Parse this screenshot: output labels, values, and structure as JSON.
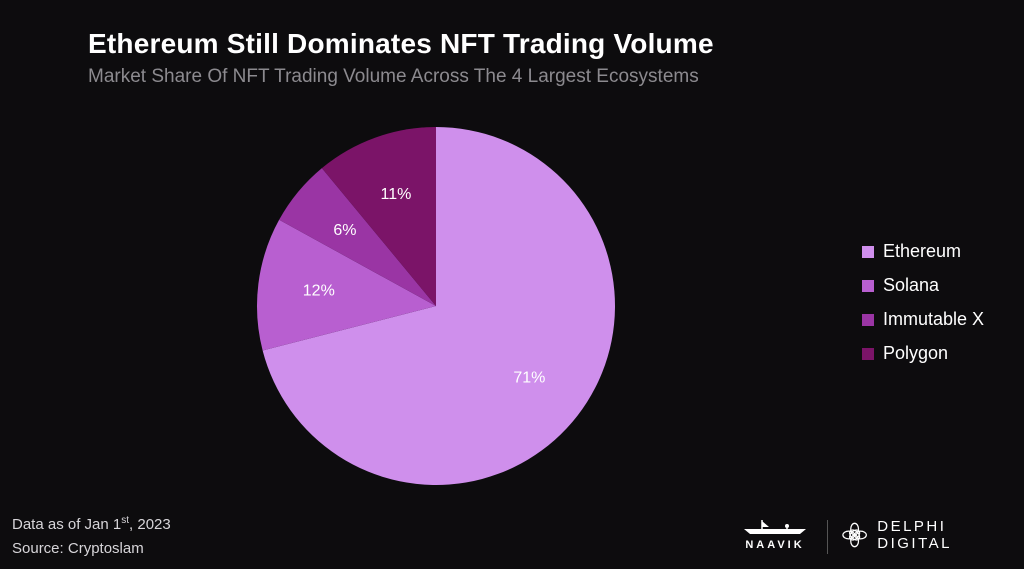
{
  "chart_data": {
    "type": "pie",
    "title": "Ethereum Still Dominates NFT Trading Volume",
    "subtitle": "Market Share Of NFT Trading Volume Across The 4 Largest Ecosystems",
    "slices": [
      {
        "label": "Ethereum",
        "value": 71,
        "display": "71%",
        "color": "#cf8fec"
      },
      {
        "label": "Solana",
        "value": 12,
        "display": "12%",
        "color": "#b85fd0"
      },
      {
        "label": "Immutable X",
        "value": 6,
        "display": "6%",
        "color": "#9a35a4"
      },
      {
        "label": "Polygon",
        "value": 11,
        "display": "11%",
        "color": "#7b1468"
      }
    ],
    "legend_position": "right"
  },
  "footer": {
    "date_prefix": "Data as of Jan 1",
    "date_sup": "st",
    "date_suffix": ", 2023",
    "source": "Source: Cryptoslam"
  },
  "brands": {
    "naavik": "NAAVIK",
    "delphi": "DELPHI DIGITAL"
  }
}
